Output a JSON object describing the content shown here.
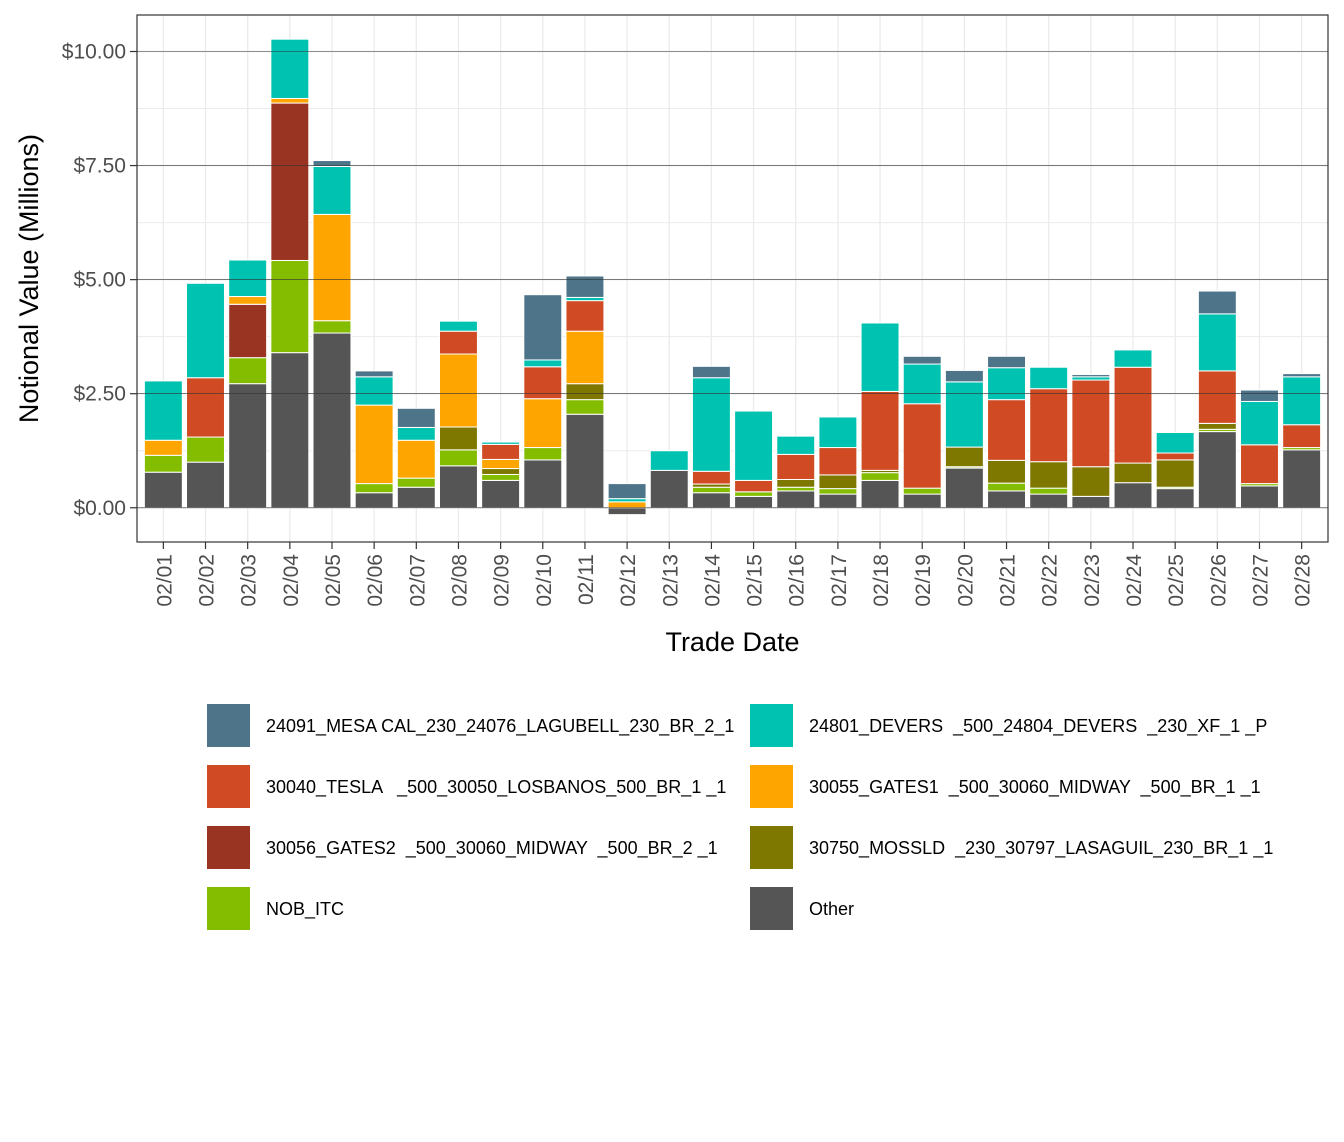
{
  "chart_data": {
    "type": "bar",
    "stacked": true,
    "xlabel": "Trade Date",
    "ylabel": "Notional Value (Millions)",
    "ylim": [
      -0.75,
      10.8
    ],
    "yticks": [
      0,
      2.5,
      5,
      7.5,
      10
    ],
    "ytick_labels": [
      "$0.00",
      "$2.50",
      "$5.00",
      "$7.50",
      "$10.00"
    ],
    "grid": true,
    "legend_position": "bottom",
    "categories": [
      "02/01",
      "02/02",
      "02/03",
      "02/04",
      "02/05",
      "02/06",
      "02/07",
      "02/08",
      "02/09",
      "02/10",
      "02/11",
      "02/12",
      "02/13",
      "02/14",
      "02/15",
      "02/16",
      "02/17",
      "02/18",
      "02/19",
      "02/20",
      "02/21",
      "02/22",
      "02/23",
      "02/24",
      "02/25",
      "02/26",
      "02/27",
      "02/28"
    ],
    "series": [
      {
        "name": "Other",
        "color": "#555555",
        "values": [
          0.78,
          1.0,
          2.72,
          3.4,
          3.83,
          0.33,
          0.45,
          0.92,
          0.6,
          1.05,
          2.05,
          -0.15,
          0.82,
          0.33,
          0.25,
          0.37,
          0.3,
          0.6,
          0.3,
          0.87,
          0.37,
          0.3,
          0.25,
          0.55,
          0.42,
          1.67,
          0.48,
          1.27
        ]
      },
      {
        "name": "NOB_ITC",
        "color": "#84bd00",
        "values": [
          0.37,
          0.55,
          0.57,
          2.02,
          0.27,
          0.2,
          0.2,
          0.35,
          0.13,
          0.27,
          0.32,
          0.0,
          0.0,
          0.12,
          0.1,
          0.08,
          0.12,
          0.17,
          0.13,
          0.03,
          0.17,
          0.13,
          0.0,
          0.0,
          0.03,
          0.05,
          0.05,
          0.05
        ]
      },
      {
        "name": "30750_MOSSLD  _230_30797_LASAGUIL_230_BR_1 _1",
        "color": "#7f7800",
        "values": [
          0.0,
          0.0,
          0.0,
          0.0,
          0.0,
          0.0,
          0.0,
          0.5,
          0.13,
          0.0,
          0.35,
          0.0,
          0.0,
          0.07,
          0.0,
          0.17,
          0.3,
          0.05,
          0.0,
          0.43,
          0.5,
          0.58,
          0.65,
          0.43,
          0.6,
          0.13,
          0.0,
          0.0
        ]
      },
      {
        "name": "30056_GATES2  _500_30060_MIDWAY  _500_BR_2 _1",
        "color": "#993322",
        "values": [
          0.0,
          0.0,
          1.17,
          3.45,
          0.0,
          0.0,
          0.0,
          0.0,
          0.0,
          0.0,
          0.0,
          0.0,
          0.0,
          0.0,
          0.0,
          0.0,
          0.0,
          0.0,
          0.0,
          0.0,
          0.0,
          0.0,
          0.0,
          0.0,
          0.0,
          0.0,
          0.0,
          0.0
        ]
      },
      {
        "name": "30055_GATES1  _500_30060_MIDWAY  _500_BR_1 _1",
        "color": "#ffa500",
        "values": [
          0.33,
          0.0,
          0.17,
          0.1,
          2.33,
          1.72,
          0.83,
          1.6,
          0.2,
          1.07,
          1.15,
          0.13,
          0.0,
          0.0,
          0.0,
          0.0,
          0.0,
          0.0,
          0.0,
          0.0,
          0.0,
          0.0,
          0.0,
          0.0,
          0.0,
          0.0,
          0.0,
          0.0
        ]
      },
      {
        "name": "30040_TESLA   _500_30050_LOSBANOS_500_BR_1 _1",
        "color": "#d04a23",
        "values": [
          0.0,
          1.3,
          0.0,
          0.0,
          0.0,
          0.0,
          0.0,
          0.5,
          0.33,
          0.7,
          0.67,
          0.0,
          0.0,
          0.28,
          0.25,
          0.55,
          0.6,
          1.73,
          1.85,
          0.0,
          1.33,
          1.6,
          1.9,
          2.1,
          0.15,
          1.15,
          0.85,
          0.5
        ]
      },
      {
        "name": "24801_DEVERS  _500_24804_DEVERS  _230_XF_1 _P",
        "color": "#00c2b0",
        "values": [
          1.3,
          2.07,
          0.8,
          1.3,
          1.05,
          0.62,
          0.28,
          0.22,
          0.05,
          0.15,
          0.07,
          0.07,
          0.43,
          2.05,
          1.52,
          0.4,
          0.67,
          1.5,
          0.87,
          1.43,
          0.7,
          0.47,
          0.07,
          0.38,
          0.45,
          1.25,
          0.95,
          1.05
        ]
      },
      {
        "name": "24091_MESA CAL_230_24076_LAGUBELL_230_BR_2_1",
        "color": "#4e748a",
        "values": [
          0.0,
          0.0,
          0.0,
          0.0,
          0.13,
          0.13,
          0.42,
          0.0,
          0.0,
          1.43,
          0.47,
          0.33,
          0.0,
          0.25,
          0.0,
          0.0,
          0.0,
          0.0,
          0.17,
          0.25,
          0.25,
          0.0,
          0.05,
          0.0,
          0.0,
          0.5,
          0.25,
          0.07
        ]
      }
    ],
    "legend": [
      {
        "name": "24091_MESA CAL_230_24076_LAGUBELL_230_BR_2_1",
        "color": "#4e748a"
      },
      {
        "name": "24801_DEVERS  _500_24804_DEVERS  _230_XF_1 _P",
        "color": "#00c2b0"
      },
      {
        "name": "30040_TESLA   _500_30050_LOSBANOS_500_BR_1 _1",
        "color": "#d04a23"
      },
      {
        "name": "30055_GATES1  _500_30060_MIDWAY  _500_BR_1 _1",
        "color": "#ffa500"
      },
      {
        "name": "30056_GATES2  _500_30060_MIDWAY  _500_BR_2 _1",
        "color": "#993322"
      },
      {
        "name": "30750_MOSSLD  _230_30797_LASAGUIL_230_BR_1 _1",
        "color": "#7f7800"
      },
      {
        "name": "NOB_ITC",
        "color": "#84bd00"
      },
      {
        "name": "Other",
        "color": "#555555"
      }
    ]
  }
}
